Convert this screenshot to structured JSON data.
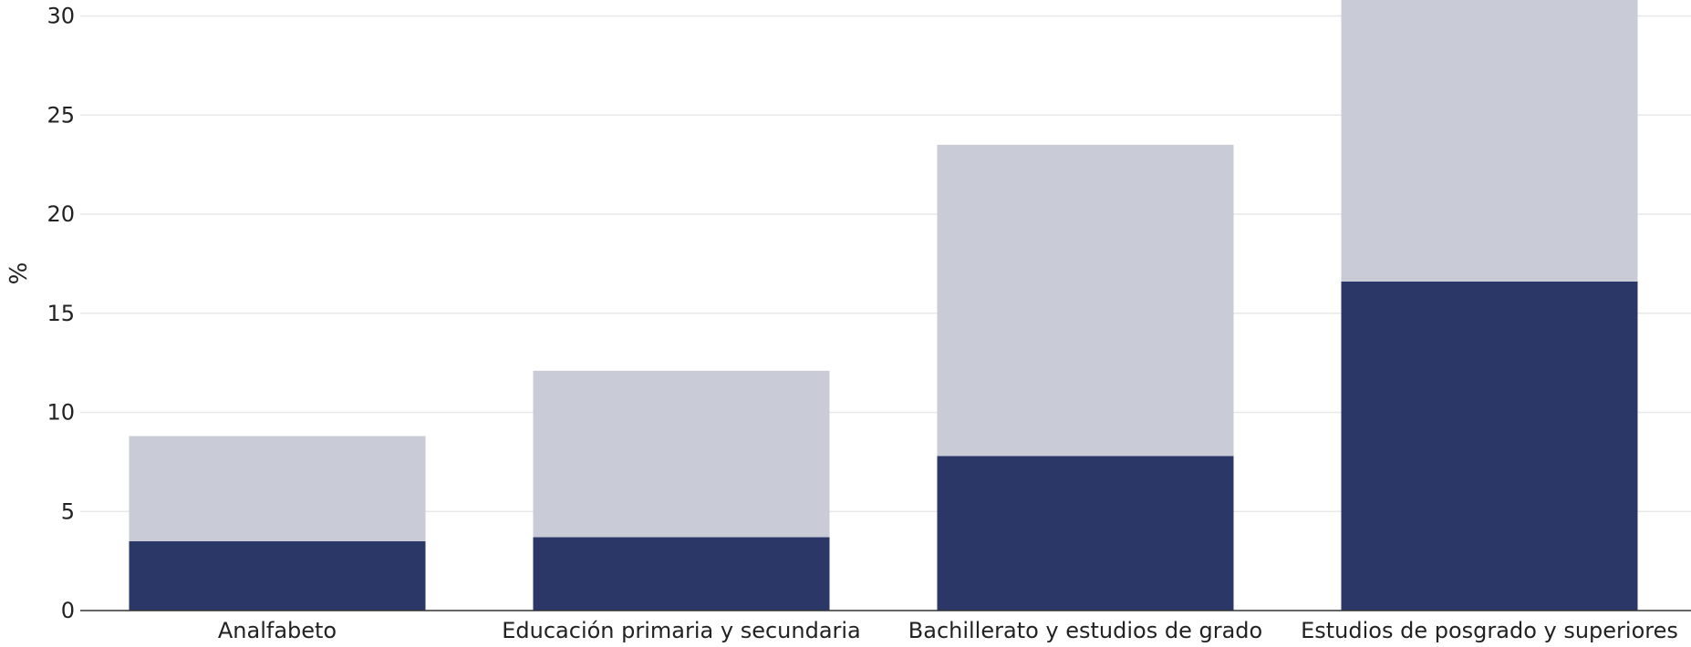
{
  "chart_data": {
    "type": "bar",
    "stacked": true,
    "categories": [
      "Analfabeto",
      "Educación primaria y secundaria",
      "Bachillerato y estudios de grado",
      "Estudios de posgrado y superiores"
    ],
    "series": [
      {
        "values": [
          3.5,
          3.7,
          7.8,
          16.6
        ],
        "color": "#2b3766"
      },
      {
        "values": [
          5.3,
          8.4,
          15.7,
          15.4
        ],
        "color": "#c9cbd6"
      }
    ],
    "xlabel": "",
    "ylabel": "%",
    "ylim": [
      0,
      30.8
    ],
    "yticks": [
      0,
      5,
      10,
      15,
      20,
      25,
      30
    ],
    "grid": true
  }
}
